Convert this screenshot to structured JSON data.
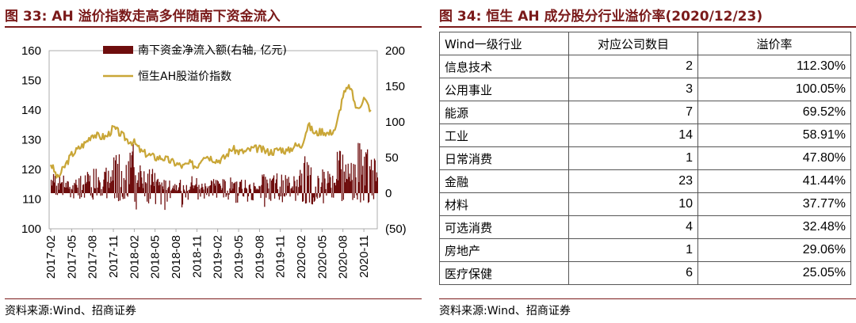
{
  "left": {
    "title": "图 33:  AH 溢价指数走高多伴随南下资金流入",
    "source": "资料来源:Wind、招商证券"
  },
  "right": {
    "title": "图 34:  恒生 AH 成分股分行业溢价率(2020/12/23)",
    "source": "资料来源:Wind、招商证券",
    "headers": [
      "Wind一级行业",
      "对应公司数目",
      "溢价率"
    ]
  },
  "colors": {
    "bars": "#6e0d0d",
    "line": "#c9a637",
    "negative_axis": "#e02020",
    "title": "#7a1a1a"
  },
  "chart_data": [
    {
      "type": "line+bar",
      "title": "AH 溢价指数走高多伴随南下资金流入",
      "x_tick_labels": [
        "2017-02",
        "2017-05",
        "2017-08",
        "2017-11",
        "2018-02",
        "2018-05",
        "2018-08",
        "2018-11",
        "2019-02",
        "2019-05",
        "2019-08",
        "2019-11",
        "2020-02",
        "2020-05",
        "2020-08",
        "2020-11"
      ],
      "left_axis": {
        "ylim": [
          100,
          160
        ],
        "ticks": [
          "100",
          "110",
          "120",
          "130",
          "140",
          "150",
          "160"
        ]
      },
      "right_axis": {
        "ylim": [
          -50,
          200
        ],
        "ticks": [
          "(50)",
          "0",
          "50",
          "100",
          "150",
          "200"
        ]
      },
      "legend": {
        "placement": "top-center"
      },
      "series": [
        {
          "name": "南下资金净流入额(右轴, 亿元)",
          "type": "bar",
          "axis": "right",
          "monthly_typical": [
            {
              "month": "2017-02",
              "high": 30,
              "low": -8
            },
            {
              "month": "2017-03",
              "high": 25,
              "low": -6
            },
            {
              "month": "2017-04",
              "high": 18,
              "low": -8
            },
            {
              "month": "2017-05",
              "high": 22,
              "low": -10
            },
            {
              "month": "2017-06",
              "high": 26,
              "low": -8
            },
            {
              "month": "2017-07",
              "high": 30,
              "low": -8
            },
            {
              "month": "2017-08",
              "high": 40,
              "low": -10
            },
            {
              "month": "2017-09",
              "high": 38,
              "low": -12
            },
            {
              "month": "2017-10",
              "high": 35,
              "low": -10
            },
            {
              "month": "2017-11",
              "high": 55,
              "low": -12
            },
            {
              "month": "2017-12",
              "high": 40,
              "low": -10
            },
            {
              "month": "2018-01",
              "high": 75,
              "low": -15
            },
            {
              "month": "2018-02",
              "high": 50,
              "low": -35
            },
            {
              "month": "2018-03",
              "high": 40,
              "low": -20
            },
            {
              "month": "2018-04",
              "high": 35,
              "low": -15
            },
            {
              "month": "2018-05",
              "high": 25,
              "low": -20
            },
            {
              "month": "2018-06",
              "high": 20,
              "low": -25
            },
            {
              "month": "2018-07",
              "high": 18,
              "low": -10
            },
            {
              "month": "2018-08",
              "high": 20,
              "low": -20
            },
            {
              "month": "2018-09",
              "high": 12,
              "low": -12
            },
            {
              "month": "2018-10",
              "high": 25,
              "low": -20
            },
            {
              "month": "2018-11",
              "high": 15,
              "low": -12
            },
            {
              "month": "2018-12",
              "high": 18,
              "low": -10
            },
            {
              "month": "2019-01",
              "high": 22,
              "low": -12
            },
            {
              "month": "2019-02",
              "high": 20,
              "low": -15
            },
            {
              "month": "2019-03",
              "high": 22,
              "low": -10
            },
            {
              "month": "2019-04",
              "high": 25,
              "low": -18
            },
            {
              "month": "2019-05",
              "high": 20,
              "low": -10
            },
            {
              "month": "2019-06",
              "high": 15,
              "low": -12
            },
            {
              "month": "2019-07",
              "high": 18,
              "low": -15
            },
            {
              "month": "2019-08",
              "high": 40,
              "low": -20
            },
            {
              "month": "2019-09",
              "high": 25,
              "low": -12
            },
            {
              "month": "2019-10",
              "high": 28,
              "low": -10
            },
            {
              "month": "2019-11",
              "high": 30,
              "low": -15
            },
            {
              "month": "2019-12",
              "high": 25,
              "low": -10
            },
            {
              "month": "2020-01",
              "high": 35,
              "low": -12
            },
            {
              "month": "2020-02",
              "high": 55,
              "low": -15
            },
            {
              "month": "2020-03",
              "high": 90,
              "low": -20
            },
            {
              "month": "2020-04",
              "high": 30,
              "low": -12
            },
            {
              "month": "2020-05",
              "high": 35,
              "low": -15
            },
            {
              "month": "2020-06",
              "high": 40,
              "low": -10
            },
            {
              "month": "2020-07",
              "high": 60,
              "low": -15
            },
            {
              "month": "2020-08",
              "high": 45,
              "low": -12
            },
            {
              "month": "2020-09",
              "high": 60,
              "low": -10
            },
            {
              "month": "2020-10",
              "high": 75,
              "low": -15
            },
            {
              "month": "2020-11",
              "high": 65,
              "low": -15
            },
            {
              "month": "2020-12",
              "high": 50,
              "low": -12
            }
          ]
        },
        {
          "name": "恒生AH股溢价指数",
          "type": "line",
          "axis": "left",
          "x": [
            "2017-02",
            "2017-03",
            "2017-04",
            "2017-05",
            "2017-06",
            "2017-07",
            "2017-08",
            "2017-09",
            "2017-10",
            "2017-11",
            "2017-12",
            "2018-01",
            "2018-02",
            "2018-03",
            "2018-04",
            "2018-05",
            "2018-06",
            "2018-07",
            "2018-08",
            "2018-09",
            "2018-10",
            "2018-11",
            "2018-12",
            "2019-01",
            "2019-02",
            "2019-03",
            "2019-04",
            "2019-05",
            "2019-06",
            "2019-07",
            "2019-08",
            "2019-09",
            "2019-10",
            "2019-11",
            "2019-12",
            "2020-01",
            "2020-02",
            "2020-03",
            "2020-04",
            "2020-05",
            "2020-06",
            "2020-07",
            "2020-08",
            "2020-09",
            "2020-10",
            "2020-11",
            "2020-12"
          ],
          "values": [
            122,
            117,
            121,
            125,
            127,
            129,
            132,
            131,
            131,
            134,
            132,
            130,
            129,
            126,
            125,
            124,
            124,
            123,
            122,
            121,
            122,
            121,
            125,
            124,
            123,
            124,
            127,
            126,
            126,
            127,
            127,
            126,
            126,
            127,
            126,
            128,
            128,
            135,
            132,
            133,
            132,
            134,
            145,
            148,
            140,
            144,
            140
          ]
        }
      ]
    },
    {
      "type": "table",
      "title": "恒生 AH 成分股分行业溢价率(2020/12/23)",
      "columns": [
        "Wind一级行业",
        "对应公司数目",
        "溢价率"
      ],
      "rows": [
        [
          "信息技术",
          "2",
          "112.30%"
        ],
        [
          "公用事业",
          "3",
          "100.05%"
        ],
        [
          "能源",
          "7",
          "69.52%"
        ],
        [
          "工业",
          "14",
          "58.91%"
        ],
        [
          "日常消费",
          "1",
          "47.80%"
        ],
        [
          "金融",
          "23",
          "41.44%"
        ],
        [
          "材料",
          "10",
          "37.77%"
        ],
        [
          "可选消费",
          "4",
          "32.48%"
        ],
        [
          "房地产",
          "1",
          "29.06%"
        ],
        [
          "医疗保健",
          "6",
          "25.05%"
        ]
      ]
    }
  ]
}
